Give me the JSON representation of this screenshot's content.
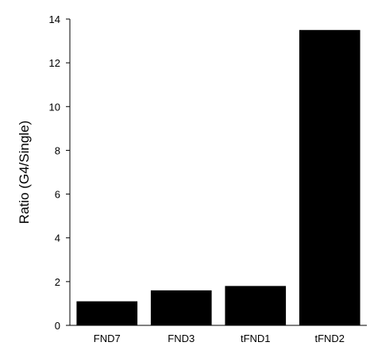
{
  "chart_data": {
    "type": "bar",
    "categories": [
      "FND7",
      "FND3",
      "tFND1",
      "tFND2"
    ],
    "values": [
      1.1,
      1.6,
      1.8,
      13.5
    ],
    "xlabel": "",
    "ylabel": "Ratio (G4/Single)",
    "ylim": [
      0,
      14
    ],
    "yticks": [
      0,
      2,
      4,
      6,
      8,
      10,
      12,
      14
    ],
    "grid": false,
    "bar_color": "#000000"
  }
}
